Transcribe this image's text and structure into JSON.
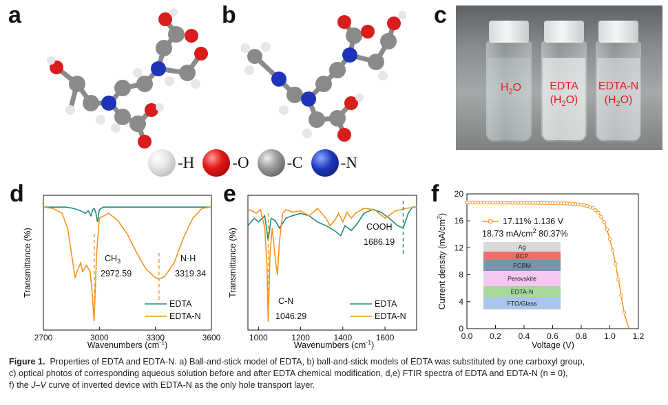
{
  "panels": {
    "a": "a",
    "b": "b",
    "c": "c",
    "d": "d",
    "e": "e",
    "f": "f"
  },
  "atom_legend": [
    {
      "label": "-H",
      "icon": "hydrogen-ball"
    },
    {
      "label": "-O",
      "icon": "oxygen-ball"
    },
    {
      "label": "-C",
      "icon": "carbon-ball"
    },
    {
      "label": "-N",
      "icon": "nitrogen-ball"
    }
  ],
  "colors": {
    "edta": "#1f8a7e",
    "edta_n": "#f7931e",
    "h": "#e6e6e6",
    "o": "#d91c1c",
    "c": "#8a8a8a",
    "n": "#1d34b8",
    "photo_label": "#e01b1b"
  },
  "photo": {
    "vials": [
      {
        "line1": "H",
        "sub": "2",
        "line1b": "O",
        "line2": ""
      },
      {
        "line1": "EDTA",
        "line2": "(H",
        "sub": "2",
        "line2b": "O)"
      },
      {
        "line1": "EDTA-N",
        "line2": "(H",
        "sub": "2",
        "line2b": "O)"
      }
    ]
  },
  "chart_data": [
    {
      "panel": "d",
      "type": "line",
      "xlabel": "Wavenumbers (cm",
      "xlabel_sup": "-1",
      "xlabel_end": ")",
      "ylabel": "Transmittance (%)",
      "xlim": [
        2700,
        3600
      ],
      "xticks": [
        2700,
        3000,
        3300,
        3600
      ],
      "legend": [
        "EDTA",
        "EDTA-N"
      ],
      "annotations": [
        {
          "text": "CH",
          "sub": "3",
          "value": "2972.59",
          "x": 2972.59
        },
        {
          "text": "N-H",
          "value": "3319.34",
          "x": 3319.34
        }
      ],
      "series": [
        {
          "name": "EDTA",
          "x": [
            2700,
            2760,
            2820,
            2860,
            2900,
            2925,
            2940,
            2955,
            2965,
            2972,
            2980,
            2990,
            3000,
            3020,
            3060,
            3100,
            3200,
            3300,
            3400,
            3500,
            3600
          ],
          "y": [
            97,
            97,
            97,
            96,
            94,
            92,
            94,
            90,
            95,
            96,
            93,
            85,
            95,
            97,
            97,
            97,
            97,
            97,
            97,
            97,
            97
          ]
        },
        {
          "name": "EDTA-N",
          "x": [
            2700,
            2750,
            2800,
            2830,
            2850,
            2870,
            2880,
            2900,
            2910,
            2930,
            2950,
            2960,
            2972,
            2985,
            3000,
            3050,
            3100,
            3150,
            3200,
            3250,
            3300,
            3320,
            3350,
            3400,
            3450,
            3500,
            3550,
            3600
          ],
          "y": [
            97,
            96,
            92,
            80,
            60,
            40,
            45,
            52,
            45,
            50,
            45,
            30,
            5,
            60,
            88,
            92,
            86,
            75,
            60,
            47,
            40,
            39,
            41,
            52,
            72,
            88,
            96,
            97
          ]
        }
      ]
    },
    {
      "panel": "e",
      "type": "line",
      "xlabel": "Wavenumbers (cm",
      "xlabel_sup": "-1",
      "xlabel_end": ")",
      "ylabel": "Transmittance (%)",
      "xlim": [
        950,
        1750
      ],
      "xticks": [
        1000,
        1200,
        1400,
        1600
      ],
      "legend": [
        "EDTA",
        "EDTA-N"
      ],
      "annotations": [
        {
          "text": "C-N",
          "value": "1046.29",
          "x": 1046.29
        },
        {
          "text": "COOH",
          "value": "1686.19",
          "x": 1686.19
        }
      ],
      "series": [
        {
          "name": "EDTA",
          "x": [
            950,
            980,
            1000,
            1030,
            1046,
            1060,
            1080,
            1100,
            1130,
            1160,
            1200,
            1240,
            1280,
            1320,
            1360,
            1390,
            1410,
            1440,
            1470,
            1500,
            1540,
            1580,
            1620,
            1660,
            1686,
            1710,
            1730,
            1750
          ],
          "y": [
            82,
            88,
            85,
            90,
            70,
            88,
            86,
            80,
            88,
            90,
            92,
            90,
            85,
            82,
            78,
            74,
            82,
            78,
            84,
            92,
            95,
            93,
            88,
            82,
            80,
            92,
            97,
            97
          ]
        },
        {
          "name": "EDTA-N",
          "x": [
            950,
            970,
            990,
            1010,
            1030,
            1040,
            1046,
            1055,
            1065,
            1080,
            1090,
            1100,
            1115,
            1130,
            1160,
            1200,
            1240,
            1280,
            1320,
            1340,
            1360,
            1380,
            1400,
            1420,
            1440,
            1460,
            1500,
            1550,
            1600,
            1650,
            1700,
            1750
          ],
          "y": [
            95,
            94,
            92,
            95,
            80,
            50,
            5,
            60,
            80,
            55,
            42,
            70,
            92,
            95,
            93,
            94,
            90,
            96,
            88,
            82,
            86,
            92,
            85,
            93,
            88,
            92,
            96,
            95,
            88,
            94,
            96,
            97
          ]
        }
      ]
    },
    {
      "panel": "f",
      "type": "line",
      "xlabel": "Voltage (V)",
      "ylabel": "Current density (mA/cm",
      "ylabel_sup": "2",
      "ylabel_end": ")",
      "xlim": [
        0,
        1.2
      ],
      "ylim": [
        0,
        20
      ],
      "xticks": [
        "0.0",
        "0.2",
        "0.4",
        "0.6",
        "0.8",
        "1.0",
        "1.2"
      ],
      "yticks": [
        "0",
        "4",
        "8",
        "12",
        "16",
        "20"
      ],
      "legend_line1": "17.11% 1.136 V",
      "legend_line2a": "18.73 mA/cm",
      "legend_line2_sup": "2",
      "legend_line2b": " 80.37%",
      "series": [
        {
          "name": "17.11% 1.136 V",
          "x": [
            0,
            0.1,
            0.2,
            0.3,
            0.4,
            0.5,
            0.6,
            0.7,
            0.75,
            0.8,
            0.85,
            0.88,
            0.9,
            0.92,
            0.94,
            0.96,
            0.98,
            1.0,
            1.02,
            1.04,
            1.06,
            1.08,
            1.1,
            1.12,
            1.136
          ],
          "y": [
            18.73,
            18.72,
            18.71,
            18.7,
            18.69,
            18.67,
            18.64,
            18.58,
            18.52,
            18.4,
            18.15,
            17.9,
            17.6,
            17.2,
            16.6,
            15.8,
            14.7,
            13.3,
            11.6,
            9.6,
            7.3,
            4.9,
            2.4,
            0.9,
            0
          ]
        }
      ],
      "device_stack": [
        {
          "label": "Ag",
          "color": "#d9d9d9"
        },
        {
          "label": "BCP",
          "color": "#f26d6d"
        },
        {
          "label": "PCBM",
          "color": "#7a93ad"
        },
        {
          "label": "Perovskite",
          "color": "#f6c7f0"
        },
        {
          "label": "EDTA-N",
          "color": "#a8d89a"
        },
        {
          "label": "FTO/Glass",
          "color": "#a9c6ea"
        }
      ]
    }
  ],
  "caption": {
    "label": "Figure 1.",
    "text1": "Properties of EDTA and EDTA-N. a) Ball-and-stick model of EDTA, b) ball-and-stick models of EDTA was substituted by one carboxyl group,",
    "text2": "c) optical photos of corresponding aqueous solution before and after EDTA chemical modification, d,e) FTIR spectra of EDTA and EDTA-N (n = 0),",
    "text3a": "f) the ",
    "text3_italic": "J–V",
    "text3b": " curve of inverted device with EDTA-N as the only hole transport layer."
  }
}
